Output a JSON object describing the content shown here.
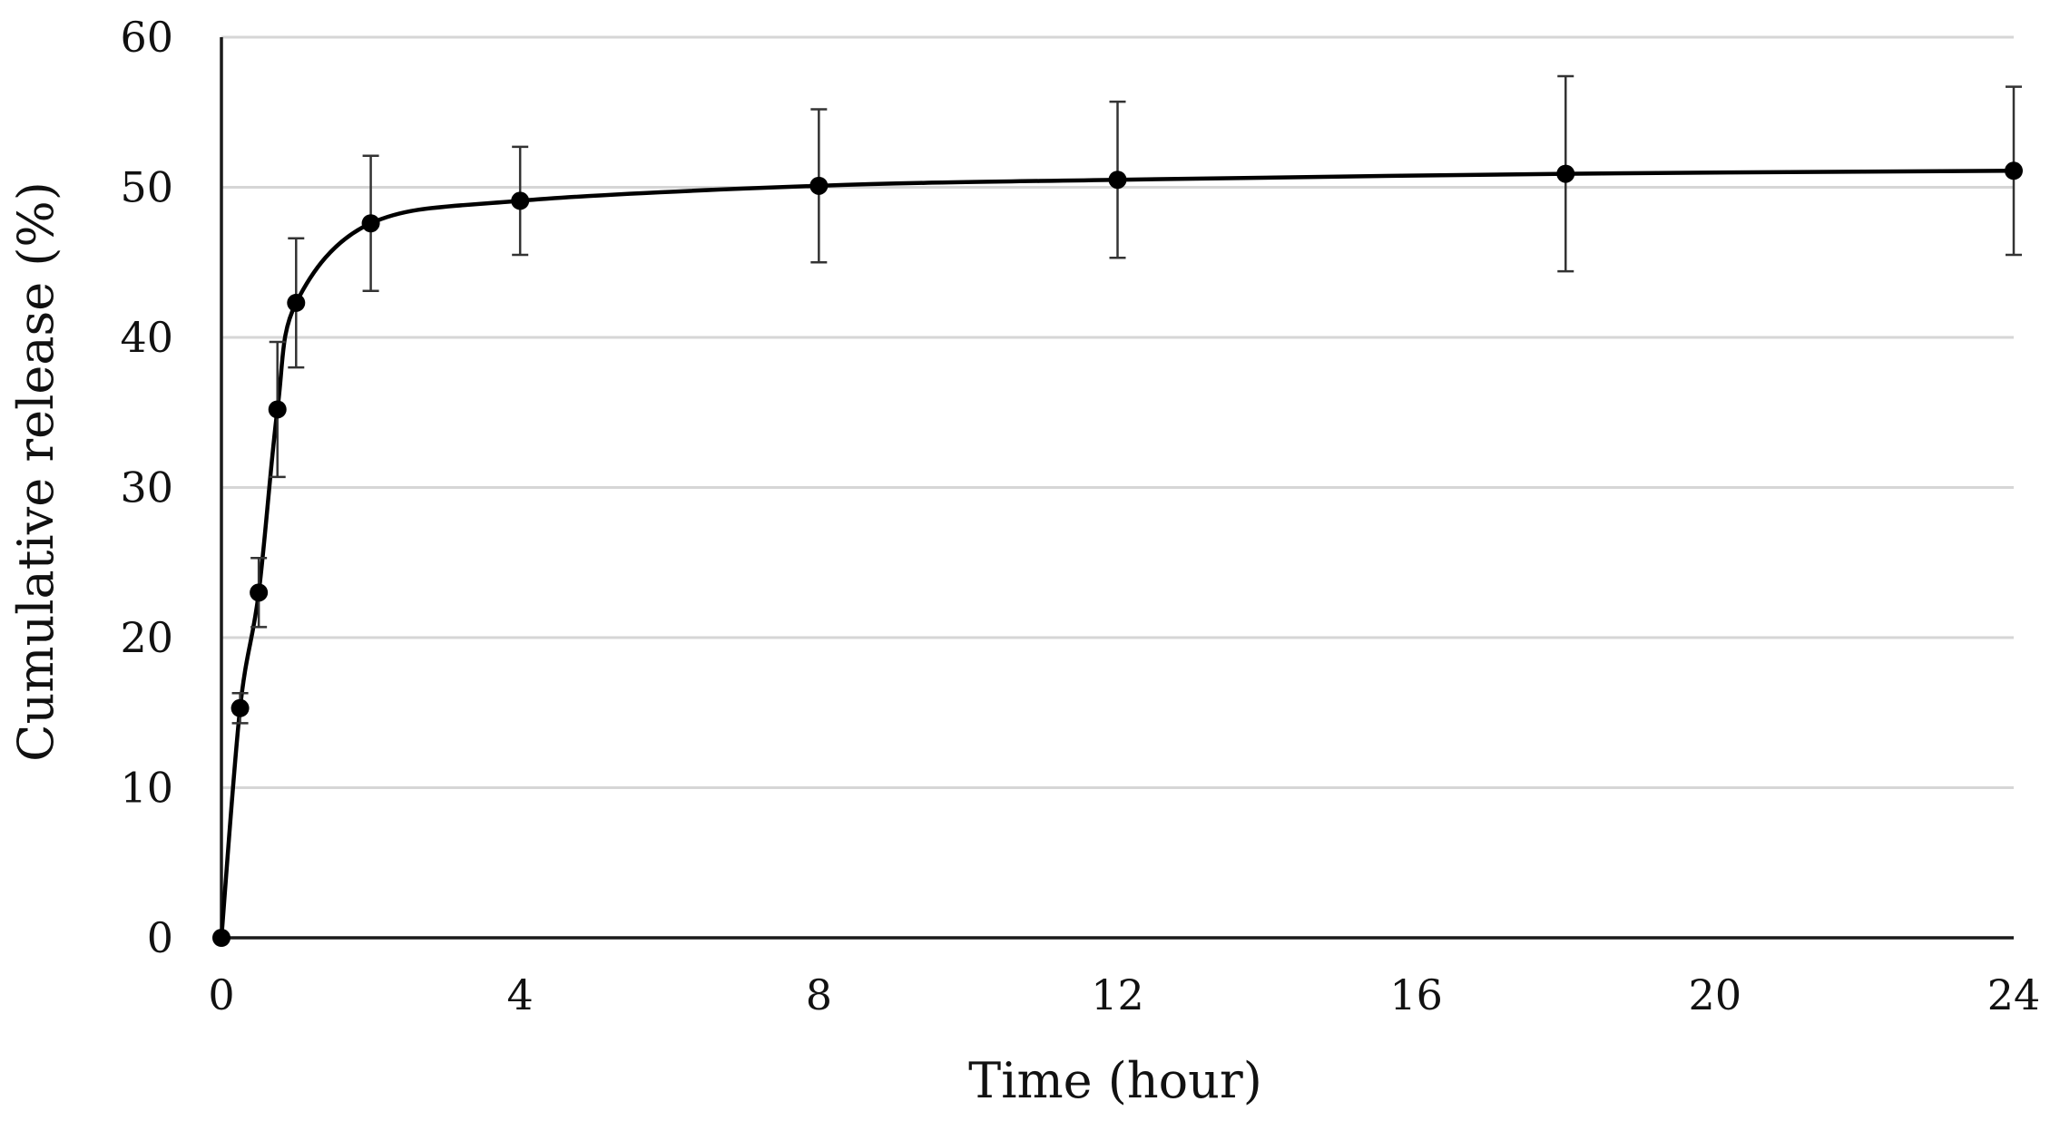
{
  "chart_data": {
    "type": "line",
    "title": "",
    "xlabel": "Time (hour)",
    "ylabel": "Cumulative release (%)",
    "xlim": [
      0,
      24
    ],
    "ylim": [
      0,
      60
    ],
    "xticks": [
      0,
      4,
      8,
      12,
      16,
      20,
      24
    ],
    "yticks": [
      0,
      10,
      20,
      30,
      40,
      50,
      60
    ],
    "xtick_labels": [
      "0",
      "4",
      "8",
      "12",
      "16",
      "20",
      "24"
    ],
    "ytick_labels": [
      "0",
      "10",
      "20",
      "30",
      "40",
      "50",
      "60"
    ],
    "grid": "horizontal",
    "smooth": true,
    "series": [
      {
        "name": "Cumulative release",
        "color": "#000000",
        "x": [
          0,
          0.25,
          0.5,
          0.75,
          1,
          2,
          4,
          8,
          12,
          18,
          24
        ],
        "y": [
          0,
          15.3,
          23.0,
          35.2,
          42.3,
          47.6,
          49.1,
          50.1,
          50.5,
          50.9,
          51.1
        ],
        "error": [
          0,
          1.0,
          2.3,
          4.5,
          4.3,
          4.5,
          3.6,
          5.1,
          5.2,
          6.5,
          5.6
        ]
      }
    ]
  }
}
